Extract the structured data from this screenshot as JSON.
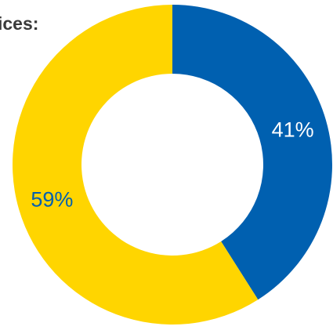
{
  "chart_data": {
    "type": "pie",
    "title": "ices:",
    "categories": [
      "",
      ""
    ],
    "values": [
      41,
      59
    ],
    "labels": [
      "41%",
      "59%"
    ],
    "colors": [
      "#0060B0",
      "#FFD500"
    ],
    "label_colors": [
      "#ffffff",
      "#0060B0"
    ],
    "inner_color": "#ffffff",
    "legend": "none"
  }
}
